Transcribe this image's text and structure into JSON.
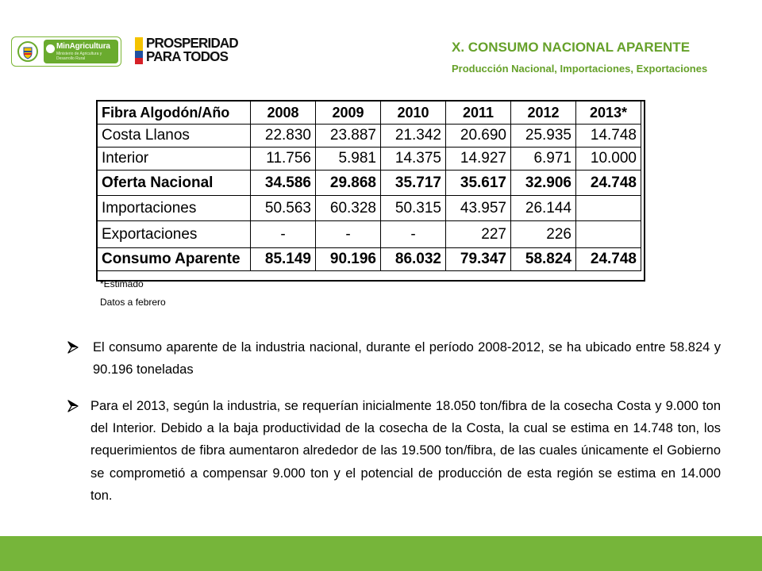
{
  "header": {
    "title": "X. CONSUMO NACIONAL APARENTE",
    "subtitle": "Producción Nacional, Importaciones, Exportaciones"
  },
  "logos": {
    "ministry_name": "MinAgricultura",
    "ministry_sub": "Ministerio de Agricultura y Desarrollo Rural",
    "prosperidad_line1": "PROSPERIDAD",
    "prosperidad_line2": "PARA TODOS"
  },
  "table": {
    "columns": [
      "Fibra Algodón/Año",
      "2008",
      "2009",
      "2010",
      "2011",
      "2012",
      "2013*"
    ],
    "rows": [
      {
        "label": "Costa Llanos",
        "values": [
          "22.830",
          "23.887",
          "21.342",
          "20.690",
          "25.935",
          "14.748"
        ]
      },
      {
        "label": "Interior",
        "values": [
          "11.756",
          "5.981",
          "14.375",
          "14.927",
          "6.971",
          "10.000"
        ]
      },
      {
        "label": "Oferta Nacional",
        "values": [
          "34.586",
          "29.868",
          "35.717",
          "35.617",
          "32.906",
          "24.748"
        ]
      },
      {
        "label": "Importaciones",
        "values": [
          "50.563",
          "60.328",
          "50.315",
          "43.957",
          "26.144",
          ""
        ]
      },
      {
        "label": "Exportaciones",
        "values": [
          "-",
          "-",
          "-",
          "227",
          "226",
          ""
        ]
      },
      {
        "label": "Consumo Aparente",
        "values": [
          "85.149",
          "90.196",
          "86.032",
          "79.347",
          "58.824",
          "24.748"
        ]
      }
    ],
    "note_estimated": "*Estimado",
    "note_date": "Datos a febrero"
  },
  "bullets": [
    "El consumo aparente de la industria nacional, durante el período 2008-2012, se ha ubicado entre 58.824 y 90.196 toneladas",
    "Para el 2013, según la industria, se requerían inicialmente 18.050 ton/fibra de la cosecha Costa y 9.000 ton del Interior. Debido a la baja productividad de la cosecha de la Costa, la cual se estima en 14.748 ton, los requerimientos de fibra aumentaron alrededor de las 19.500 ton/fibra, de las cuales únicamente el Gobierno se comprometió a compensar 9.000 ton y el potencial de producción de esta región se estima en 14.000 ton."
  ],
  "colors": {
    "accent_green": "#66a12a",
    "footer_green": "#76b53a",
    "flag_yellow": "#f4c300",
    "flag_blue": "#1f4fa0",
    "flag_red": "#d62027"
  }
}
